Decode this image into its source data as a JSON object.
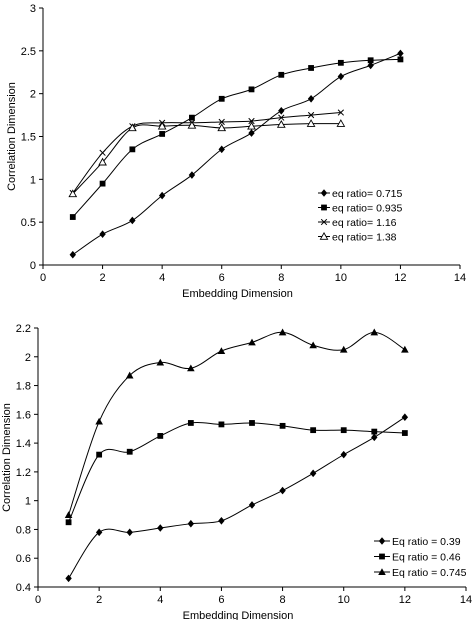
{
  "chart_data": [
    {
      "type": "line",
      "xlabel": "Embedding  Dimension",
      "ylabel": "Correlation  Dimension",
      "xlim": [
        0,
        14
      ],
      "ylim": [
        0,
        3
      ],
      "xticks": [
        "0",
        "2",
        "4",
        "6",
        "8",
        "10",
        "12",
        "14"
      ],
      "yticks": [
        "0",
        "0.5",
        "1",
        "1.5",
        "2",
        "2.5",
        "3"
      ],
      "grid": false,
      "legend_position": "bottom-right",
      "series": [
        {
          "name": "eq ratio= 0.715",
          "marker": "diamond",
          "x": [
            1,
            2,
            3,
            4,
            5,
            6,
            7,
            8,
            9,
            10,
            11,
            12
          ],
          "y": [
            0.12,
            0.36,
            0.52,
            0.81,
            1.05,
            1.35,
            1.54,
            1.8,
            1.94,
            2.2,
            2.33,
            2.47
          ]
        },
        {
          "name": "eq ratio= 0.935",
          "marker": "square",
          "x": [
            1,
            2,
            3,
            4,
            5,
            6,
            7,
            8,
            9,
            10,
            11,
            12
          ],
          "y": [
            0.56,
            0.95,
            1.35,
            1.53,
            1.72,
            1.94,
            2.05,
            2.22,
            2.3,
            2.36,
            2.39,
            2.4
          ]
        },
        {
          "name": "eq ratio= 1.16",
          "marker": "x",
          "x": [
            1,
            2,
            3,
            4,
            5,
            6,
            7,
            8,
            9,
            10
          ],
          "y": [
            0.84,
            1.31,
            1.62,
            1.66,
            1.66,
            1.67,
            1.68,
            1.72,
            1.75,
            1.78
          ]
        },
        {
          "name": "eq ratio= 1.38",
          "marker": "triangle-open",
          "x": [
            1,
            2,
            3,
            4,
            5,
            6,
            7,
            8,
            9,
            10
          ],
          "y": [
            0.83,
            1.2,
            1.6,
            1.62,
            1.63,
            1.6,
            1.62,
            1.64,
            1.65,
            1.65
          ]
        }
      ]
    },
    {
      "type": "line",
      "xlabel": "Embedding Dimension",
      "ylabel": "Correlation Dimension",
      "xlim": [
        0,
        14
      ],
      "ylim": [
        0.4,
        2.2
      ],
      "xticks": [
        "0",
        "2",
        "4",
        "6",
        "8",
        "10",
        "12",
        "14"
      ],
      "yticks": [
        "0.4",
        "0.6",
        "0.8",
        "1",
        "1.2",
        "1.4",
        "1.6",
        "1.8",
        "2",
        "2.2"
      ],
      "grid": false,
      "legend_position": "bottom-right",
      "series": [
        {
          "name": "Eq ratio = 0.39",
          "marker": "diamond",
          "x": [
            1,
            2,
            3,
            4,
            5,
            6,
            7,
            8,
            9,
            10,
            11,
            12
          ],
          "y": [
            0.46,
            0.78,
            0.78,
            0.81,
            0.84,
            0.86,
            0.97,
            1.07,
            1.19,
            1.32,
            1.44,
            1.58
          ]
        },
        {
          "name": "Eq ratio = 0.46",
          "marker": "square",
          "x": [
            1,
            2,
            3,
            4,
            5,
            6,
            7,
            8,
            9,
            10,
            11,
            12
          ],
          "y": [
            0.85,
            1.32,
            1.34,
            1.45,
            1.54,
            1.53,
            1.54,
            1.52,
            1.49,
            1.49,
            1.48,
            1.47
          ]
        },
        {
          "name": "Eq ratio = 0.745",
          "marker": "triangle",
          "x": [
            1,
            2,
            3,
            4,
            5,
            6,
            7,
            8,
            9,
            10,
            11,
            12
          ],
          "y": [
            0.9,
            1.55,
            1.87,
            1.96,
            1.92,
            2.04,
            2.1,
            2.17,
            2.08,
            2.05,
            2.17,
            2.05
          ]
        }
      ]
    }
  ]
}
